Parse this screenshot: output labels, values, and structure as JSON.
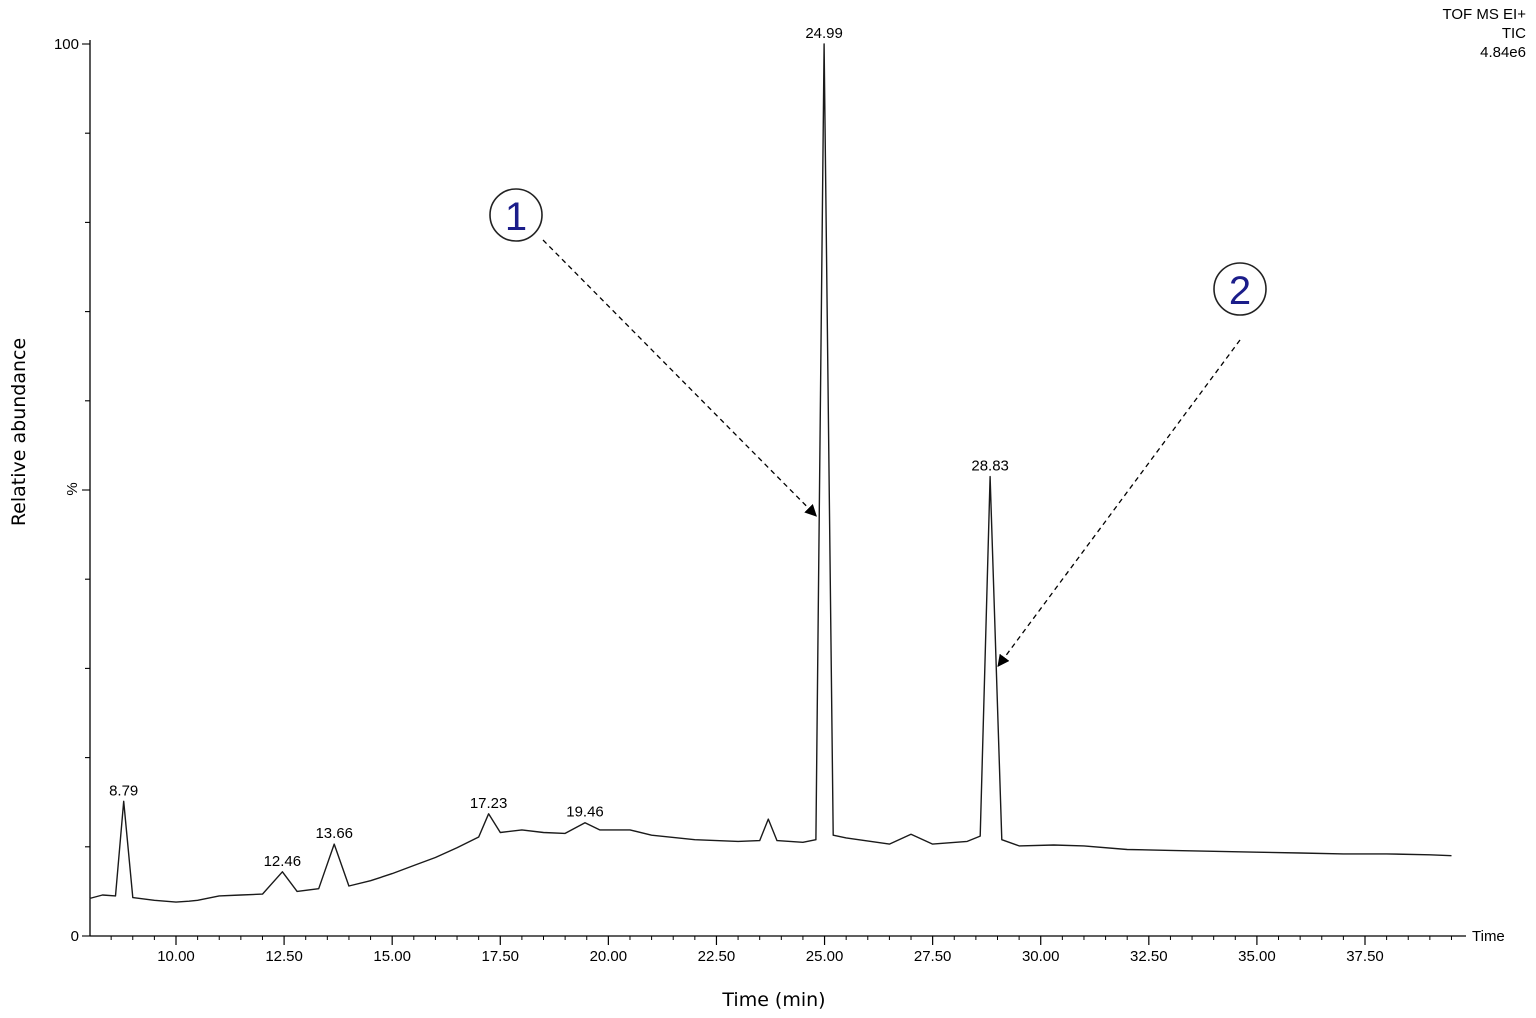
{
  "header": {
    "line1": "TOF MS EI+",
    "line2": "TIC",
    "line3": "4.84e6"
  },
  "chart_data": {
    "type": "line",
    "title": "",
    "xlabel": "Time (min)",
    "ylabel": "Relative abundance",
    "x_axis_end_label": "Time",
    "y_axis_mid_label": "%",
    "xlim": [
      8.0,
      39.5
    ],
    "ylim": [
      0,
      100
    ],
    "x_ticks": [
      10.0,
      12.5,
      15.0,
      17.5,
      20.0,
      22.5,
      25.0,
      27.5,
      30.0,
      32.5,
      35.0,
      37.5
    ],
    "x_tick_labels": [
      "10.00",
      "12.50",
      "15.00",
      "17.50",
      "20.00",
      "22.50",
      "25.00",
      "27.50",
      "30.00",
      "32.50",
      "35.00",
      "37.50"
    ],
    "y_tick_labels": [
      {
        "value": 0,
        "label": "0"
      },
      {
        "value": 100,
        "label": "100"
      }
    ],
    "grid": false,
    "series": [
      {
        "x": [
          8.0,
          8.3,
          8.6,
          8.79,
          9.0,
          9.5,
          10.0,
          10.3,
          10.5,
          11.0,
          11.5,
          12.0,
          12.46,
          12.8,
          13.3,
          13.66,
          14.0,
          14.5,
          15.0,
          15.5,
          16.0,
          16.5,
          17.0,
          17.23,
          17.5,
          18.0,
          18.5,
          19.0,
          19.46,
          19.8,
          20.5,
          21.0,
          22.0,
          23.0,
          23.5,
          23.7,
          23.9,
          24.5,
          24.8,
          24.99,
          25.2,
          25.5,
          26.5,
          27.0,
          27.5,
          28.3,
          28.6,
          28.83,
          29.1,
          29.5,
          30.3,
          31.0,
          32.0,
          33.0,
          34.0,
          35.0,
          36.0,
          37.0,
          38.0,
          39.0,
          39.5
        ],
        "y": [
          4.2,
          4.6,
          4.5,
          15.1,
          4.3,
          4.0,
          3.8,
          3.9,
          4.0,
          4.5,
          4.6,
          4.7,
          7.2,
          5.0,
          5.3,
          10.3,
          5.6,
          6.2,
          7.0,
          7.9,
          8.8,
          9.9,
          11.1,
          13.7,
          11.6,
          11.9,
          11.6,
          11.5,
          12.7,
          11.9,
          11.9,
          11.3,
          10.8,
          10.6,
          10.7,
          13.1,
          10.7,
          10.5,
          10.8,
          100.0,
          11.3,
          11.0,
          10.3,
          11.4,
          10.3,
          10.6,
          11.2,
          51.5,
          10.8,
          10.1,
          10.2,
          10.1,
          9.7,
          9.6,
          9.5,
          9.4,
          9.3,
          9.2,
          9.2,
          9.1,
          9.0
        ]
      }
    ],
    "peak_labels": [
      {
        "x": 8.79,
        "y": 15.1,
        "label": "8.79"
      },
      {
        "x": 12.46,
        "y": 7.2,
        "label": "12.46"
      },
      {
        "x": 13.66,
        "y": 10.3,
        "label": "13.66"
      },
      {
        "x": 17.23,
        "y": 13.7,
        "label": "17.23"
      },
      {
        "x": 19.46,
        "y": 12.7,
        "label": "19.46"
      },
      {
        "x": 24.99,
        "y": 100.0,
        "label": "24.99"
      },
      {
        "x": 28.83,
        "y": 51.5,
        "label": "28.83"
      }
    ],
    "annotations": [
      {
        "label": "1",
        "points_to_x": 24.99,
        "points_to_y": 48.0
      },
      {
        "label": "2",
        "points_to_x": 28.83,
        "points_to_y": 31.5
      }
    ],
    "colors": {
      "trace": "#1a1a1a",
      "marker_text": "#1b1d8a"
    }
  }
}
